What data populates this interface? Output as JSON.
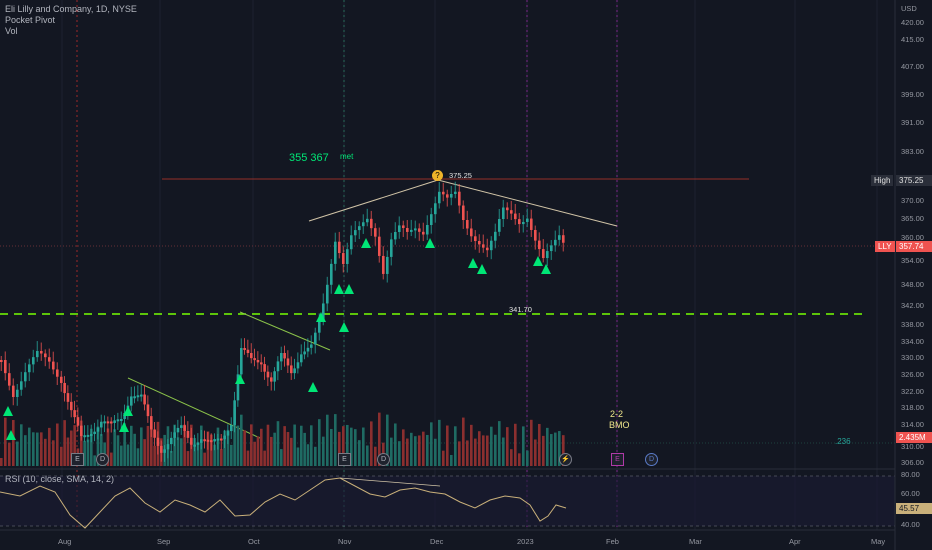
{
  "legend": {
    "symbol_title": "Eli Lilly and Company, 1D, NYSE",
    "indicator1": "Pocket Pivot",
    "indicator2": "Vol"
  },
  "annotations": {
    "target_text": "355  367",
    "met_text": "met",
    "high_value": "375.25",
    "support_value": "341.70",
    "pattern_text_1": "2-2",
    "pattern_text_2": "BMO",
    "vol_value_label": ".236"
  },
  "price_axis": {
    "currency": "USD",
    "ticks": [
      "420.00",
      "415.00",
      "407.00",
      "399.00",
      "391.00",
      "383.00",
      "370.00",
      "365.00",
      "360.00",
      "354.00",
      "348.00",
      "342.00",
      "338.00",
      "334.00",
      "330.00",
      "326.00",
      "322.00",
      "318.00",
      "314.00",
      "310.00",
      "306.00"
    ],
    "high_tag_label": "High",
    "high_tag_value": "375.25",
    "lly_tag_label": "LLY",
    "lly_tag_value": "357.74",
    "vol_tag_value": "2.435M"
  },
  "rsi": {
    "label": "RSI (10, close, SMA, 14, 2)",
    "ticks": [
      "80.00",
      "60.00",
      "40.00"
    ],
    "value": "45.57"
  },
  "time_axis": {
    "labels": [
      "Aug",
      "Sep",
      "Oct",
      "Nov",
      "Dec",
      "2023",
      "Feb",
      "Mar",
      "Apr",
      "May"
    ]
  },
  "events": {
    "earnings": "E",
    "dividend": "D",
    "split": "⚡"
  },
  "colors": {
    "background": "#131722",
    "up": "#26a69a",
    "down": "#ef5350",
    "green_signal": "#00e676",
    "support_line": "#76ff03",
    "trend_line": "#d1c4a7",
    "rsi_line": "#c9b07a"
  },
  "chart_data": {
    "type": "candlestick",
    "title": "Eli Lilly and Company, 1D, NYSE",
    "xlabel": "",
    "ylabel": "USD",
    "ylim": [
      306,
      422
    ],
    "series": [
      {
        "name": "LLY",
        "last": 357.74,
        "high": 375.25,
        "support": 341.7
      }
    ],
    "rsi": {
      "last": 45.57,
      "ylim": [
        20,
        90
      ]
    }
  }
}
